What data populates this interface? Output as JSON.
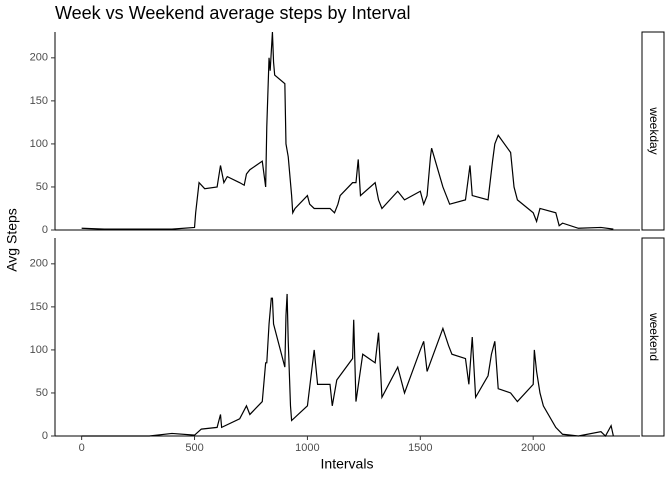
{
  "chart_data": {
    "type": "line",
    "facet": true,
    "title": "Week vs Weekend average steps by Interval",
    "x_label": "Intervals",
    "y_label": "Avg Steps",
    "xlim": [
      -118,
      2473
    ],
    "xticks": [
      0,
      500,
      1000,
      1500,
      2000
    ],
    "ylim": [
      0,
      230
    ],
    "yticks": [
      0,
      50,
      100,
      150,
      200
    ],
    "series": [
      {
        "name": "weekday",
        "color": "#000000",
        "x": [
          0,
          100,
          200,
          300,
          400,
          500,
          505,
          520,
          545,
          600,
          615,
          630,
          645,
          700,
          720,
          730,
          745,
          800,
          815,
          820,
          830,
          835,
          845,
          850,
          855,
          900,
          905,
          915,
          930,
          935,
          945,
          1000,
          1010,
          1030,
          1100,
          1120,
          1135,
          1145,
          1200,
          1215,
          1225,
          1235,
          1300,
          1315,
          1330,
          1400,
          1430,
          1500,
          1515,
          1530,
          1545,
          1550,
          1600,
          1615,
          1630,
          1700,
          1720,
          1730,
          1800,
          1820,
          1830,
          1845,
          1900,
          1915,
          1930,
          2000,
          2015,
          2030,
          2100,
          2115,
          2130,
          2200,
          2300,
          2355
        ],
        "values": [
          2,
          1,
          1,
          1,
          1,
          3,
          20,
          55,
          48,
          50,
          75,
          55,
          62,
          55,
          52,
          65,
          70,
          80,
          50,
          120,
          200,
          185,
          230,
          195,
          180,
          170,
          100,
          85,
          40,
          20,
          25,
          40,
          30,
          25,
          25,
          20,
          30,
          40,
          55,
          55,
          82,
          40,
          55,
          35,
          25,
          45,
          35,
          45,
          30,
          40,
          85,
          95,
          50,
          40,
          30,
          35,
          75,
          40,
          35,
          80,
          100,
          110,
          90,
          50,
          35,
          20,
          10,
          25,
          20,
          5,
          8,
          2,
          3,
          1
        ]
      },
      {
        "name": "weekend",
        "color": "#000000",
        "x": [
          0,
          100,
          300,
          400,
          500,
          530,
          600,
          615,
          620,
          700,
          730,
          745,
          800,
          815,
          820,
          830,
          840,
          845,
          850,
          900,
          905,
          910,
          915,
          925,
          930,
          1000,
          1030,
          1045,
          1100,
          1110,
          1130,
          1200,
          1205,
          1215,
          1245,
          1300,
          1315,
          1330,
          1400,
          1430,
          1500,
          1515,
          1530,
          1600,
          1625,
          1640,
          1700,
          1715,
          1730,
          1745,
          1800,
          1815,
          1830,
          1845,
          1900,
          1930,
          2000,
          2005,
          2015,
          2030,
          2045,
          2100,
          2130,
          2200,
          2300,
          2320,
          2345,
          2355
        ],
        "values": [
          0,
          0,
          0,
          3,
          1,
          8,
          10,
          25,
          10,
          20,
          35,
          25,
          40,
          85,
          85,
          130,
          160,
          160,
          130,
          80,
          140,
          165,
          110,
          35,
          18,
          35,
          100,
          60,
          60,
          35,
          65,
          90,
          135,
          40,
          95,
          85,
          120,
          45,
          80,
          50,
          100,
          110,
          75,
          125,
          105,
          95,
          90,
          60,
          115,
          45,
          70,
          95,
          110,
          55,
          50,
          40,
          60,
          100,
          75,
          50,
          35,
          10,
          2,
          0,
          5,
          0,
          12,
          0
        ]
      }
    ]
  }
}
